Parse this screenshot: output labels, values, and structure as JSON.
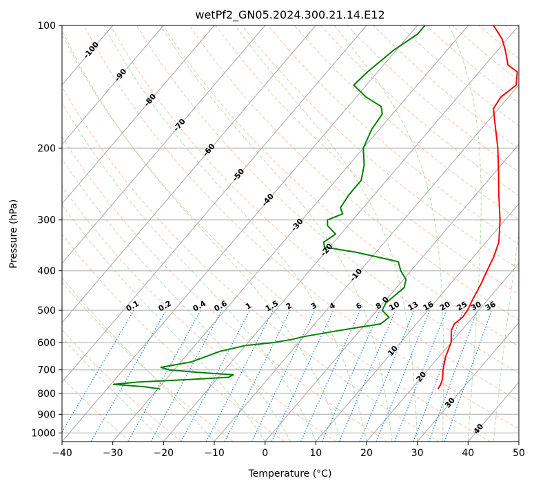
{
  "chart_data": {
    "type": "line",
    "title": "wetPf2_GN05.2024.300.21.14.E12",
    "xlabel": "Temperature (°C)",
    "ylabel": "Pressure (hPa)",
    "xlim": [
      -40,
      50
    ],
    "ylim": [
      1050,
      100
    ],
    "y_scale": "log",
    "grid": true,
    "x_ticks": [
      -40,
      -30,
      -20,
      -10,
      0,
      10,
      20,
      30,
      40,
      50
    ],
    "y_ticks": [
      100,
      200,
      300,
      400,
      500,
      600,
      700,
      800,
      900,
      1000
    ],
    "series": [
      {
        "color": "#ff0000",
        "points": [
          [
            780,
            25.2
          ],
          [
            760,
            25.0
          ],
          [
            740,
            24.5
          ],
          [
            700,
            23.0
          ],
          [
            650,
            21.3
          ],
          [
            600,
            20.0
          ],
          [
            560,
            18.0
          ],
          [
            540,
            17.5
          ],
          [
            520,
            18.0
          ],
          [
            500,
            17.8
          ],
          [
            470,
            17.0
          ],
          [
            430,
            16.0
          ],
          [
            400,
            15.0
          ],
          [
            370,
            14.0
          ],
          [
            340,
            12.5
          ],
          [
            300,
            9.0
          ],
          [
            260,
            4.5
          ],
          [
            230,
            0.8
          ],
          [
            200,
            -3.5
          ],
          [
            170,
            -9.0
          ],
          [
            160,
            -11.0
          ],
          [
            150,
            -11.5
          ],
          [
            140,
            -10.5
          ],
          [
            130,
            -12.5
          ],
          [
            125,
            -15.5
          ],
          [
            115,
            -18.5
          ],
          [
            108,
            -21.0
          ],
          [
            100,
            -25.0
          ]
        ]
      },
      {
        "color": "#008000",
        "points": [
          [
            780,
            -29.5
          ],
          [
            770,
            -33.0
          ],
          [
            760,
            -39.5
          ],
          [
            750,
            -35.0
          ],
          [
            740,
            -26.0
          ],
          [
            730,
            -18.0
          ],
          [
            720,
            -17.5
          ],
          [
            710,
            -25.0
          ],
          [
            700,
            -31.0
          ],
          [
            690,
            -33.0
          ],
          [
            670,
            -28.0
          ],
          [
            650,
            -26.0
          ],
          [
            630,
            -24.0
          ],
          [
            610,
            -20.0
          ],
          [
            600,
            -15.0
          ],
          [
            590,
            -12.0
          ],
          [
            580,
            -10.0
          ],
          [
            560,
            -4.0
          ],
          [
            540,
            3.0
          ],
          [
            520,
            3.5
          ],
          [
            500,
            1.0
          ],
          [
            480,
            0.5
          ],
          [
            460,
            1.0
          ],
          [
            440,
            1.5
          ],
          [
            420,
            0.5
          ],
          [
            400,
            -2.0
          ],
          [
            380,
            -4.0
          ],
          [
            360,
            -14.0
          ],
          [
            350,
            -21.0
          ],
          [
            340,
            -22.0
          ],
          [
            325,
            -21.0
          ],
          [
            310,
            -24.0
          ],
          [
            300,
            -25.0
          ],
          [
            290,
            -23.0
          ],
          [
            280,
            -24.5
          ],
          [
            260,
            -25.0
          ],
          [
            240,
            -25.0
          ],
          [
            220,
            -27.0
          ],
          [
            200,
            -30.0
          ],
          [
            180,
            -31.5
          ],
          [
            165,
            -32.0
          ],
          [
            158,
            -33.5
          ],
          [
            150,
            -38.0
          ],
          [
            140,
            -42.5
          ],
          [
            130,
            -42.0
          ],
          [
            115,
            -40.5
          ],
          [
            105,
            -38.5
          ],
          [
            100,
            -38.5
          ]
        ]
      }
    ],
    "dry_adiabat_labels": [
      "-100",
      "-90",
      "-80",
      "-70",
      "-60",
      "-50",
      "-40",
      "-30",
      "-20",
      "-10",
      "0",
      "10",
      "20",
      "30",
      "40"
    ],
    "mixing_ratio_labels": [
      "0.1",
      "0.2",
      "0.4",
      "0.6",
      "1",
      "1.5",
      "2",
      "3",
      "4",
      "6",
      "8",
      "10",
      "13",
      "16",
      "20",
      "25",
      "30",
      "36"
    ],
    "colors": {
      "isotherm": "#a8a8a8",
      "isobar": "#a8a8a8",
      "dry_adiabat": "#f7a98f",
      "moist_adiabat": "#9fd49f",
      "mixing_ratio": "#1e7fd6",
      "dry_adiabat_label_cold": "#1f77b4",
      "dry_adiabat_label_warm": "#d62728",
      "zero_label": "#7f7f7f",
      "mixing_ratio_label": "#2196f3",
      "outer_curve": "#d2b48c"
    }
  }
}
